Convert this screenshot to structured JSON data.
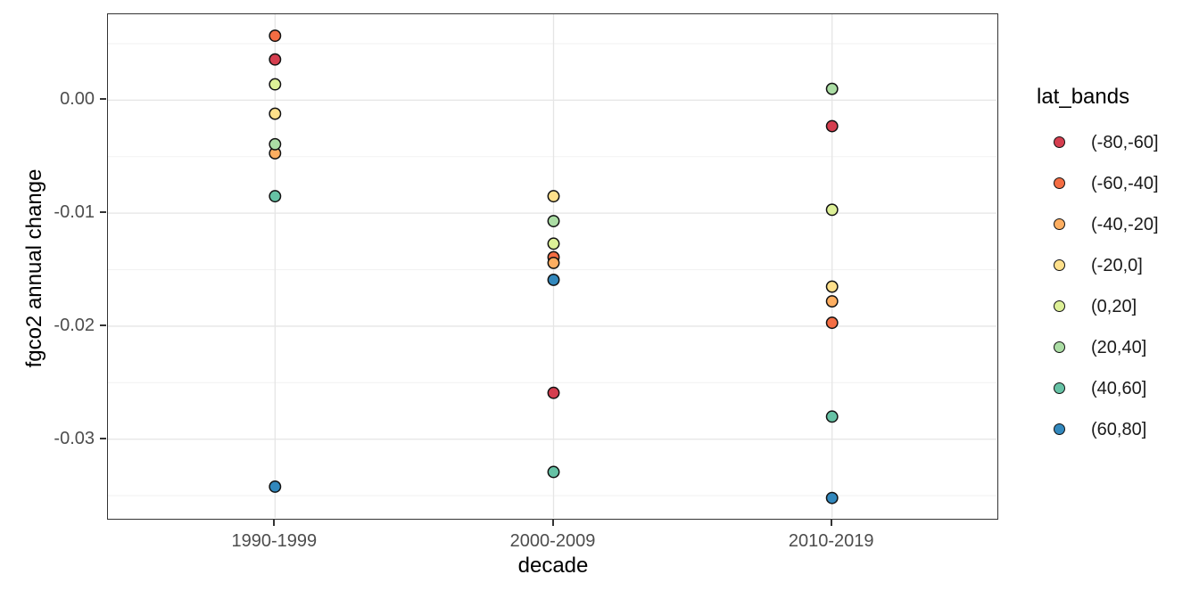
{
  "chart_data": {
    "type": "scatter",
    "title": "",
    "xlabel": "decade",
    "ylabel": "fgco2 annual change",
    "categories": [
      "1990-1999",
      "2000-2009",
      "2010-2019"
    ],
    "y_ticks": [
      {
        "value": 0.0,
        "label": "0.00"
      },
      {
        "value": -0.01,
        "label": "-0.01"
      },
      {
        "value": -0.02,
        "label": "-0.02"
      },
      {
        "value": -0.03,
        "label": "-0.03"
      }
    ],
    "y_minor_ticks": [
      0.005,
      -0.005,
      -0.015,
      -0.025,
      -0.035
    ],
    "ylim": [
      -0.0372,
      0.0076
    ],
    "grid": true,
    "legend_position": "right",
    "legend_title": "lat_bands",
    "series": [
      {
        "name": "(-80,-60]",
        "color": "#d53e4f",
        "values": [
          0.0036,
          -0.0259,
          -0.0023
        ]
      },
      {
        "name": "(-60,-40]",
        "color": "#f46d43",
        "values": [
          0.0057,
          -0.0139,
          -0.0197
        ]
      },
      {
        "name": "(-40,-20]",
        "color": "#fdae61",
        "values": [
          -0.0047,
          -0.0144,
          -0.0178
        ]
      },
      {
        "name": "(-20,0]",
        "color": "#fee08b",
        "values": [
          -0.0012,
          -0.0085,
          -0.0165
        ]
      },
      {
        "name": "(0,20]",
        "color": "#ddf097",
        "values": [
          0.0014,
          -0.0127,
          -0.0097
        ]
      },
      {
        "name": "(20,40]",
        "color": "#abdda4",
        "values": [
          -0.0039,
          -0.0107,
          0.001
        ]
      },
      {
        "name": "(40,60]",
        "color": "#66c2a5",
        "values": [
          -0.0085,
          -0.0329,
          -0.028
        ]
      },
      {
        "name": "(60,80]",
        "color": "#3288bd",
        "values": [
          -0.0342,
          -0.0159,
          -0.0352
        ]
      }
    ],
    "colors": {
      "panel_border": "#333333",
      "grid_major": "#e5e5e5",
      "grid_minor": "#f2f2f2",
      "tick_label": "#4d4d4d",
      "point_stroke": "#111111"
    }
  }
}
